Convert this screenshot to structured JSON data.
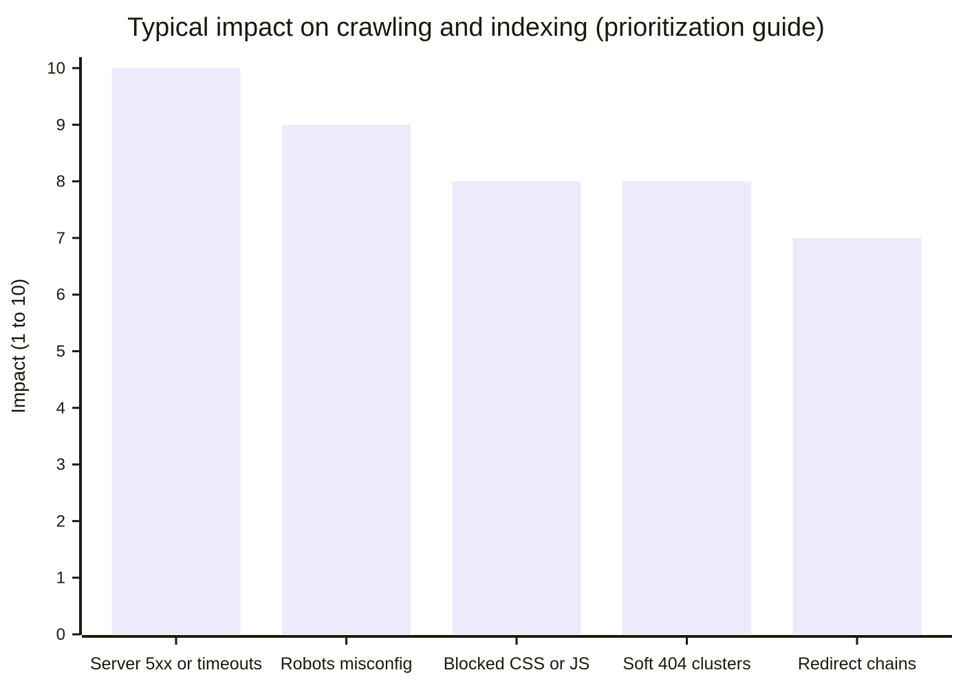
{
  "chart_data": {
    "type": "bar",
    "title": "Typical impact on crawling and indexing (prioritization guide)",
    "xlabel": "",
    "ylabel": "Impact (1 to 10)",
    "categories": [
      "Server 5xx or timeouts",
      "Robots misconfig",
      "Blocked CSS or JS",
      "Soft 404 clusters",
      "Redirect chains"
    ],
    "values": [
      10,
      9,
      8,
      8,
      7
    ],
    "ylim": [
      0,
      10
    ],
    "yticks": [
      0,
      1,
      2,
      3,
      4,
      5,
      6,
      7,
      8,
      9,
      10
    ],
    "bar_color": "#ebebfc",
    "axis_color": "#1a1a0e",
    "grid": false,
    "legend": "none"
  }
}
